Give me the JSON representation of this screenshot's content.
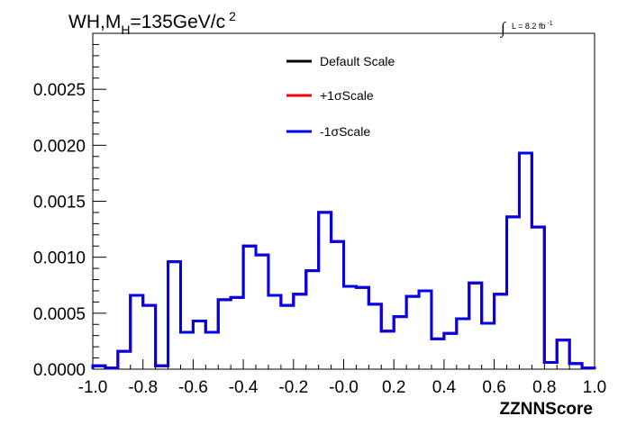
{
  "chart_data": {
    "type": "line",
    "title": {
      "prefix": "WH,M",
      "subscript": "H",
      "value": "=135GeV/c",
      "superscript": "2"
    },
    "luminosity": {
      "integral": "∫",
      "text": "L = 8.2 fb",
      "superscript": "-1"
    },
    "xlabel": "ZZNNScore",
    "ylabel": "",
    "xlim": [
      -1.0,
      1.0
    ],
    "ylim": [
      0.0,
      0.003
    ],
    "xticks": [
      -1.0,
      -0.8,
      -0.6,
      -0.4,
      -0.2,
      0.0,
      0.2,
      0.4,
      0.6,
      0.8,
      1.0
    ],
    "xtick_labels": [
      "-1.0",
      "-0.8",
      "-0.6",
      "-0.4",
      "-0.2",
      "-0.0",
      "0.2",
      "0.4",
      "0.6",
      "0.8",
      "1.0"
    ],
    "yticks": [
      0.0,
      0.0005,
      0.001,
      0.0015,
      0.002,
      0.0025
    ],
    "ytick_labels": [
      "0.0000",
      "0.0005",
      "0.0010",
      "0.0015",
      "0.0020",
      "0.0025"
    ],
    "grid": false,
    "legend_position": "top-center",
    "bin_edges": [
      -1.0,
      -0.95,
      -0.9,
      -0.85,
      -0.8,
      -0.75,
      -0.7,
      -0.65,
      -0.6,
      -0.55,
      -0.5,
      -0.45,
      -0.4,
      -0.35,
      -0.3,
      -0.25,
      -0.2,
      -0.15,
      -0.1,
      -0.05,
      0.0,
      0.05,
      0.1,
      0.15,
      0.2,
      0.25,
      0.3,
      0.35,
      0.4,
      0.45,
      0.5,
      0.55,
      0.6,
      0.65,
      0.7,
      0.75,
      0.8,
      0.85,
      0.9,
      0.95,
      1.0
    ],
    "series": [
      {
        "name": "Default Scale",
        "color": "#000000",
        "values": [
          3e-05,
          1e-05,
          0.00016,
          0.00066,
          0.00057,
          3e-05,
          0.00096,
          0.00033,
          0.00043,
          0.00033,
          0.00062,
          0.00064,
          0.0011,
          0.00102,
          0.00066,
          0.00057,
          0.00067,
          0.00088,
          0.0014,
          0.00114,
          0.00074,
          0.00073,
          0.00058,
          0.00034,
          0.00047,
          0.00065,
          0.0007,
          0.00027,
          0.00032,
          0.00045,
          0.00077,
          0.00041,
          0.00067,
          0.00136,
          0.00193,
          0.00127,
          6e-05,
          0.00026,
          5e-05,
          1e-05
        ]
      },
      {
        "name": "+1σScale",
        "color": "#ff0000",
        "values": [
          3e-05,
          1e-05,
          0.00016,
          0.00066,
          0.00057,
          3e-05,
          0.00096,
          0.00033,
          0.00043,
          0.00033,
          0.00062,
          0.00064,
          0.0011,
          0.00102,
          0.00066,
          0.00057,
          0.00067,
          0.00088,
          0.0014,
          0.00114,
          0.00074,
          0.00073,
          0.00058,
          0.00034,
          0.00047,
          0.00065,
          0.0007,
          0.00027,
          0.00032,
          0.00045,
          0.00077,
          0.00041,
          0.00067,
          0.00136,
          0.00193,
          0.00127,
          6e-05,
          0.00026,
          5e-05,
          1e-05
        ]
      },
      {
        "name": "-1σScale",
        "color": "#0000ee",
        "values": [
          3e-05,
          1e-05,
          0.00016,
          0.00066,
          0.00057,
          3e-05,
          0.00096,
          0.00033,
          0.00043,
          0.00033,
          0.00062,
          0.00064,
          0.0011,
          0.00102,
          0.00066,
          0.00057,
          0.00067,
          0.00088,
          0.0014,
          0.00114,
          0.00074,
          0.00073,
          0.00058,
          0.00034,
          0.00047,
          0.00065,
          0.0007,
          0.00027,
          0.00032,
          0.00045,
          0.00077,
          0.00041,
          0.00067,
          0.00136,
          0.00193,
          0.00127,
          6e-05,
          0.00026,
          5e-05,
          1e-05
        ]
      }
    ]
  }
}
